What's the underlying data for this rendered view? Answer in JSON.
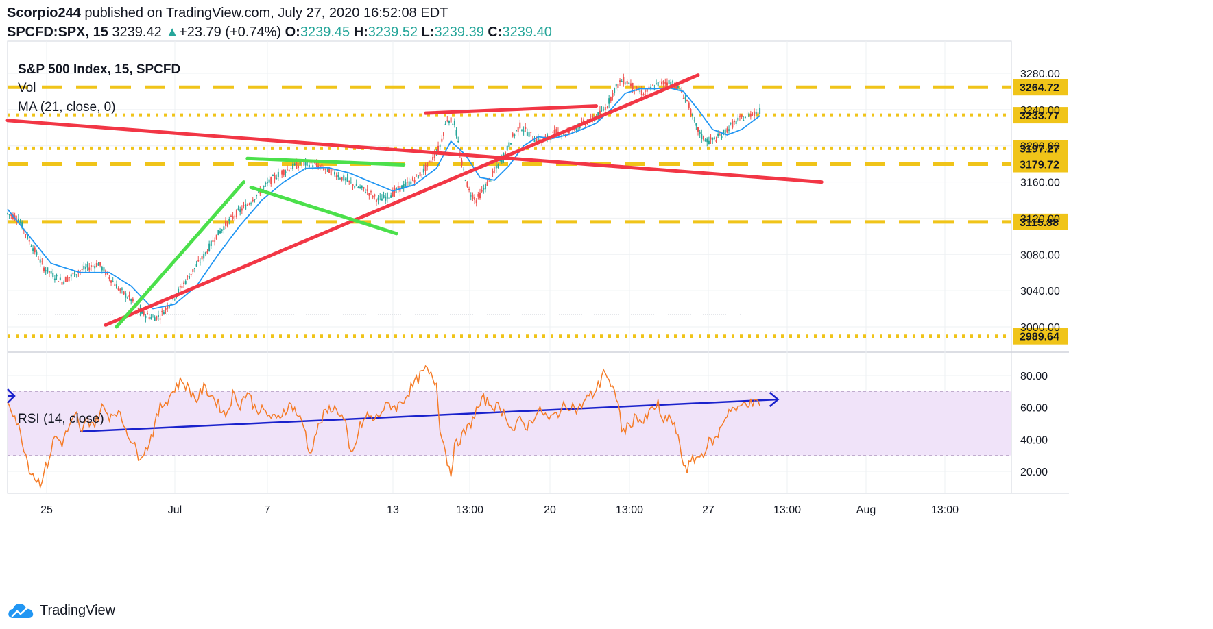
{
  "header": {
    "author": "Scorpio244",
    "published_text": "published on TradingView.com, July 27, 2020 16:52:08 EDT",
    "symbol": "SPCFD:SPX, 15",
    "last": "3239.42",
    "change": "+23.79 (+0.74%)",
    "o_label": "O:",
    "o_val": "3239.45",
    "h_label": "H:",
    "h_val": "3239.52",
    "l_label": "L:",
    "l_val": "3239.39",
    "c_label": "C:",
    "c_val": "3239.40"
  },
  "footer": {
    "brand": "TradingView"
  },
  "colors": {
    "bull": "#26a69a",
    "bear": "#ef5350",
    "ma": "#2196f3",
    "level": "#f0c419",
    "trend_red": "#f23645",
    "trend_green": "#4be04b",
    "rsi": "#f57c28",
    "rsi_band": "#f0e3f9",
    "rsi_trend": "#1a22cc",
    "grid": "#eef0f3"
  },
  "chart_data": [
    {
      "type": "candlestick",
      "title": "S&P 500 Index, 15, SPCFD",
      "legend": [
        "Vol",
        "MA (21, close, 0)"
      ],
      "x_ticks": [
        "25",
        "Jul",
        "7",
        "13",
        "13:00",
        "20",
        "13:00",
        "27",
        "13:00",
        "Aug",
        "13:00"
      ],
      "y_ticks": [
        3000,
        3040,
        3080,
        3120,
        3160,
        3200,
        3240,
        3280
      ],
      "y_tick_labels": [
        "3000.00",
        "3040.00",
        "3080.00",
        "3120.00",
        "3160.00",
        "3200.00",
        "3240.00",
        "3280.00"
      ],
      "ylim": [
        2982,
        3303
      ],
      "price_labels": [
        "3264.72",
        "3233.77",
        "3197.27",
        "3179.72",
        "3115.88",
        "2989.64"
      ],
      "levels": [
        {
          "value": 3264.72,
          "style": "dashed"
        },
        {
          "value": 3233.77,
          "style": "dotted"
        },
        {
          "value": 3197.27,
          "style": "dotted"
        },
        {
          "value": 3179.72,
          "style": "dashed"
        },
        {
          "value": 3115.88,
          "style": "dashed"
        },
        {
          "value": 2989.64,
          "style": "dotted"
        }
      ],
      "close_path": [
        [
          0,
          3125
        ],
        [
          3,
          3120
        ],
        [
          6,
          3095
        ],
        [
          10,
          3065
        ],
        [
          15,
          3050
        ],
        [
          20,
          3062
        ],
        [
          25,
          3070
        ],
        [
          28,
          3055
        ],
        [
          31,
          3040
        ],
        [
          34,
          3030
        ],
        [
          37,
          3015
        ],
        [
          40,
          3010
        ],
        [
          42,
          3012
        ],
        [
          45,
          3028
        ],
        [
          48,
          3045
        ],
        [
          51,
          3062
        ],
        [
          54,
          3078
        ],
        [
          57,
          3098
        ],
        [
          60,
          3113
        ],
        [
          63,
          3125
        ],
        [
          66,
          3135
        ],
        [
          69,
          3148
        ],
        [
          72,
          3160
        ],
        [
          75,
          3170
        ],
        [
          78,
          3176
        ],
        [
          81,
          3180
        ],
        [
          84,
          3180
        ],
        [
          87,
          3175
        ],
        [
          90,
          3170
        ],
        [
          93,
          3162
        ],
        [
          96,
          3155
        ],
        [
          99,
          3150
        ],
        [
          102,
          3140
        ],
        [
          105,
          3145
        ],
        [
          108,
          3153
        ],
        [
          111,
          3160
        ],
        [
          114,
          3170
        ],
        [
          116,
          3180
        ],
        [
          119,
          3200
        ],
        [
          121,
          3230
        ],
        [
          123,
          3225
        ],
        [
          125,
          3180
        ],
        [
          127,
          3150
        ],
        [
          129,
          3140
        ],
        [
          131,
          3152
        ],
        [
          133,
          3165
        ],
        [
          135,
          3178
        ],
        [
          137,
          3192
        ],
        [
          139,
          3210
        ],
        [
          141,
          3222
        ],
        [
          143,
          3215
        ],
        [
          145,
          3208
        ],
        [
          147,
          3205
        ],
        [
          149,
          3210
        ],
        [
          151,
          3215
        ],
        [
          153,
          3213
        ],
        [
          155,
          3218
        ],
        [
          157,
          3222
        ],
        [
          159,
          3226
        ],
        [
          161,
          3230
        ],
        [
          163,
          3235
        ],
        [
          165,
          3245
        ],
        [
          167,
          3262
        ],
        [
          169,
          3272
        ],
        [
          171,
          3270
        ],
        [
          173,
          3262
        ],
        [
          175,
          3258
        ],
        [
          177,
          3263
        ],
        [
          179,
          3268
        ],
        [
          181,
          3270
        ],
        [
          183,
          3270
        ],
        [
          185,
          3262
        ],
        [
          187,
          3250
        ],
        [
          189,
          3225
        ],
        [
          191,
          3210
        ],
        [
          193,
          3205
        ],
        [
          195,
          3208
        ],
        [
          197,
          3214
        ],
        [
          199,
          3222
        ],
        [
          201,
          3228
        ],
        [
          203,
          3232
        ],
        [
          205,
          3236
        ],
        [
          207,
          3238
        ]
      ],
      "ma_path": [
        [
          0,
          3130
        ],
        [
          6,
          3100
        ],
        [
          12,
          3070
        ],
        [
          20,
          3060
        ],
        [
          28,
          3060
        ],
        [
          34,
          3045
        ],
        [
          40,
          3020
        ],
        [
          46,
          3025
        ],
        [
          52,
          3045
        ],
        [
          58,
          3080
        ],
        [
          64,
          3112
        ],
        [
          70,
          3140
        ],
        [
          76,
          3160
        ],
        [
          82,
          3175
        ],
        [
          88,
          3176
        ],
        [
          94,
          3170
        ],
        [
          100,
          3160
        ],
        [
          106,
          3150
        ],
        [
          112,
          3157
        ],
        [
          118,
          3175
        ],
        [
          122,
          3205
        ],
        [
          126,
          3190
        ],
        [
          130,
          3165
        ],
        [
          134,
          3162
        ],
        [
          138,
          3178
        ],
        [
          142,
          3200
        ],
        [
          146,
          3210
        ],
        [
          150,
          3208
        ],
        [
          154,
          3212
        ],
        [
          158,
          3218
        ],
        [
          162,
          3225
        ],
        [
          166,
          3240
        ],
        [
          170,
          3258
        ],
        [
          174,
          3263
        ],
        [
          178,
          3263
        ],
        [
          182,
          3264
        ],
        [
          186,
          3260
        ],
        [
          190,
          3240
        ],
        [
          194,
          3218
        ],
        [
          198,
          3212
        ],
        [
          202,
          3218
        ],
        [
          206,
          3230
        ],
        [
          207,
          3233
        ]
      ],
      "trendlines": [
        {
          "color": "red",
          "from": [
            0,
            3228
          ],
          "to": [
            224,
            3160
          ]
        },
        {
          "color": "red",
          "from": [
            27,
            3002
          ],
          "to": [
            190,
            3278
          ]
        },
        {
          "color": "red",
          "from": [
            115,
            3236
          ],
          "to": [
            162,
            3244
          ]
        },
        {
          "color": "green",
          "from": [
            30,
            3000
          ],
          "to": [
            65,
            3160
          ]
        },
        {
          "color": "green",
          "from": [
            66,
            3186
          ],
          "to": [
            109,
            3179
          ]
        },
        {
          "color": "green",
          "from": [
            67,
            3154
          ],
          "to": [
            107,
            3103
          ]
        }
      ]
    },
    {
      "type": "line",
      "title": "RSI (14, close)",
      "y_ticks": [
        20,
        40,
        60,
        80
      ],
      "y_tick_labels": [
        "20.00",
        "40.00",
        "60.00",
        "80.00"
      ],
      "ylim": [
        6,
        89
      ],
      "band": [
        30,
        70
      ],
      "rsi_path": [
        [
          0,
          65
        ],
        [
          2,
          55
        ],
        [
          4,
          40
        ],
        [
          6,
          22
        ],
        [
          8,
          15
        ],
        [
          9,
          13
        ],
        [
          11,
          25
        ],
        [
          13,
          42
        ],
        [
          15,
          38
        ],
        [
          17,
          48
        ],
        [
          19,
          55
        ],
        [
          20,
          44
        ],
        [
          22,
          52
        ],
        [
          24,
          50
        ],
        [
          26,
          60
        ],
        [
          28,
          55
        ],
        [
          30,
          58
        ],
        [
          32,
          50
        ],
        [
          34,
          40
        ],
        [
          36,
          30
        ],
        [
          38,
          33
        ],
        [
          40,
          45
        ],
        [
          42,
          60
        ],
        [
          44,
          65
        ],
        [
          46,
          72
        ],
        [
          48,
          77
        ],
        [
          50,
          71
        ],
        [
          52,
          65
        ],
        [
          54,
          72
        ],
        [
          56,
          68
        ],
        [
          58,
          62
        ],
        [
          60,
          55
        ],
        [
          62,
          68
        ],
        [
          64,
          62
        ],
        [
          66,
          70
        ],
        [
          68,
          60
        ],
        [
          70,
          58
        ],
        [
          72,
          55
        ],
        [
          74,
          52
        ],
        [
          76,
          58
        ],
        [
          78,
          62
        ],
        [
          80,
          55
        ],
        [
          82,
          45
        ],
        [
          83,
          30
        ],
        [
          85,
          45
        ],
        [
          87,
          55
        ],
        [
          89,
          60
        ],
        [
          91,
          58
        ],
        [
          93,
          50
        ],
        [
          94,
          32
        ],
        [
          95,
          31
        ],
        [
          97,
          48
        ],
        [
          99,
          55
        ],
        [
          101,
          52
        ],
        [
          103,
          58
        ],
        [
          105,
          62
        ],
        [
          107,
          60
        ],
        [
          109,
          65
        ],
        [
          111,
          72
        ],
        [
          113,
          78
        ],
        [
          115,
          84
        ],
        [
          117,
          78
        ],
        [
          118,
          75
        ],
        [
          119,
          48
        ],
        [
          120,
          38
        ],
        [
          121,
          26
        ],
        [
          122,
          20
        ],
        [
          123,
          35
        ],
        [
          125,
          42
        ],
        [
          127,
          48
        ],
        [
          129,
          58
        ],
        [
          131,
          65
        ],
        [
          133,
          62
        ],
        [
          135,
          60
        ],
        [
          137,
          56
        ],
        [
          139,
          45
        ],
        [
          141,
          52
        ],
        [
          143,
          48
        ],
        [
          145,
          55
        ],
        [
          147,
          58
        ],
        [
          149,
          52
        ],
        [
          151,
          56
        ],
        [
          153,
          60
        ],
        [
          155,
          62
        ],
        [
          157,
          58
        ],
        [
          159,
          65
        ],
        [
          161,
          68
        ],
        [
          163,
          75
        ],
        [
          164,
          85
        ],
        [
          166,
          72
        ],
        [
          168,
          65
        ],
        [
          169,
          45
        ],
        [
          171,
          48
        ],
        [
          173,
          55
        ],
        [
          175,
          50
        ],
        [
          177,
          58
        ],
        [
          179,
          62
        ],
        [
          180,
          50
        ],
        [
          182,
          55
        ],
        [
          184,
          45
        ],
        [
          185,
          35
        ],
        [
          186,
          25
        ],
        [
          187,
          22
        ],
        [
          189,
          28
        ],
        [
          191,
          30
        ],
        [
          193,
          38
        ],
        [
          195,
          40
        ],
        [
          197,
          52
        ],
        [
          199,
          60
        ],
        [
          201,
          58
        ],
        [
          203,
          64
        ],
        [
          205,
          62
        ],
        [
          207,
          63
        ]
      ],
      "trendline": {
        "from": [
          20,
          45
        ],
        "to": [
          212,
          65
        ]
      }
    }
  ]
}
